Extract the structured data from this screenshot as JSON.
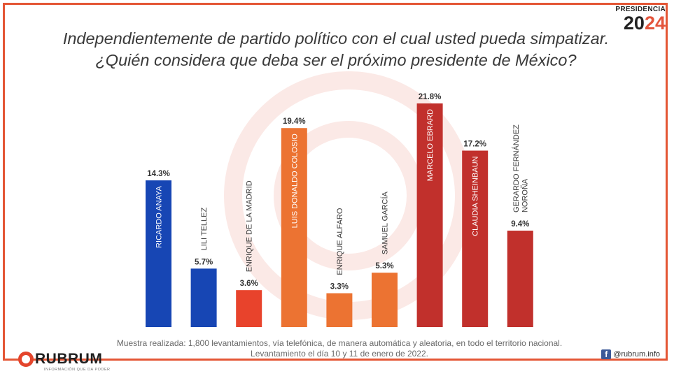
{
  "badge": {
    "label": "PRESIDENCIA",
    "year_a": "20",
    "year_b": "24"
  },
  "colors": {
    "blue": "#1746b4",
    "red_orange": "#e8432c",
    "orange": "#ec7332",
    "dark_red": "#c1302c",
    "accent": "#e45635"
  },
  "chart_data": {
    "type": "bar",
    "title_lines": [
      "Independientemente de partido político con el cual usted pueda simpatizar.",
      "¿Quién considera que deba ser el próximo presidente de México?"
    ],
    "categories": [
      "RICARDO ANAYA",
      "LILI TELLEZ",
      "ENRIQUE DE LA MADRID",
      "LUIS DONALDO COLOSIO",
      "ENRIQUE ALFARO",
      "SAMUEL GARCÍA",
      "MARCELO EBRARD",
      "CLAUDIA SHEINBAUN",
      "GERARDO FERNÁNDEZ NOROÑA"
    ],
    "category_lines": [
      [
        "RICARDO ANAYA"
      ],
      [
        "LILI TELLEZ"
      ],
      [
        "ENRIQUE DE LA MADRID"
      ],
      [
        "LUIS DONALDO COLOSIO"
      ],
      [
        "ENRIQUE ALFARO"
      ],
      [
        "SAMUEL GARCÍA"
      ],
      [
        "MARCELO EBRARD"
      ],
      [
        "CLAUDIA SHEINBAUN"
      ],
      [
        "GERARDO FERNÁNDEZ",
        "NOROÑA"
      ]
    ],
    "values": [
      14.3,
      5.7,
      3.6,
      19.4,
      3.3,
      5.3,
      21.8,
      17.2,
      9.4
    ],
    "value_labels": [
      "14.3%",
      "5.7%",
      "3.6%",
      "19.4%",
      "3.3%",
      "5.3%",
      "21.8%",
      "17.2%",
      "9.4%"
    ],
    "bar_colors": [
      "#1746b4",
      "#1746b4",
      "#e8432c",
      "#ec7332",
      "#ec7332",
      "#ec7332",
      "#c1302c",
      "#c1302c",
      "#c1302c"
    ],
    "ylim": [
      0,
      21.8
    ],
    "xlabel": "",
    "ylabel": ""
  },
  "footer": {
    "note_line1": "Muestra realizada: 1,800 levantamientos, vía telefónica, de manera automática y aleatoria, en todo el territorio nacional.",
    "note_line2": "Levantamiento el día 10 y 11 de enero de 2022.",
    "logo_word": "RUBRUM",
    "logo_tagline": "INFORMACIÓN QUE DA PODER",
    "social_handle": "@rubrum.info",
    "social_icon": "facebook-icon"
  }
}
